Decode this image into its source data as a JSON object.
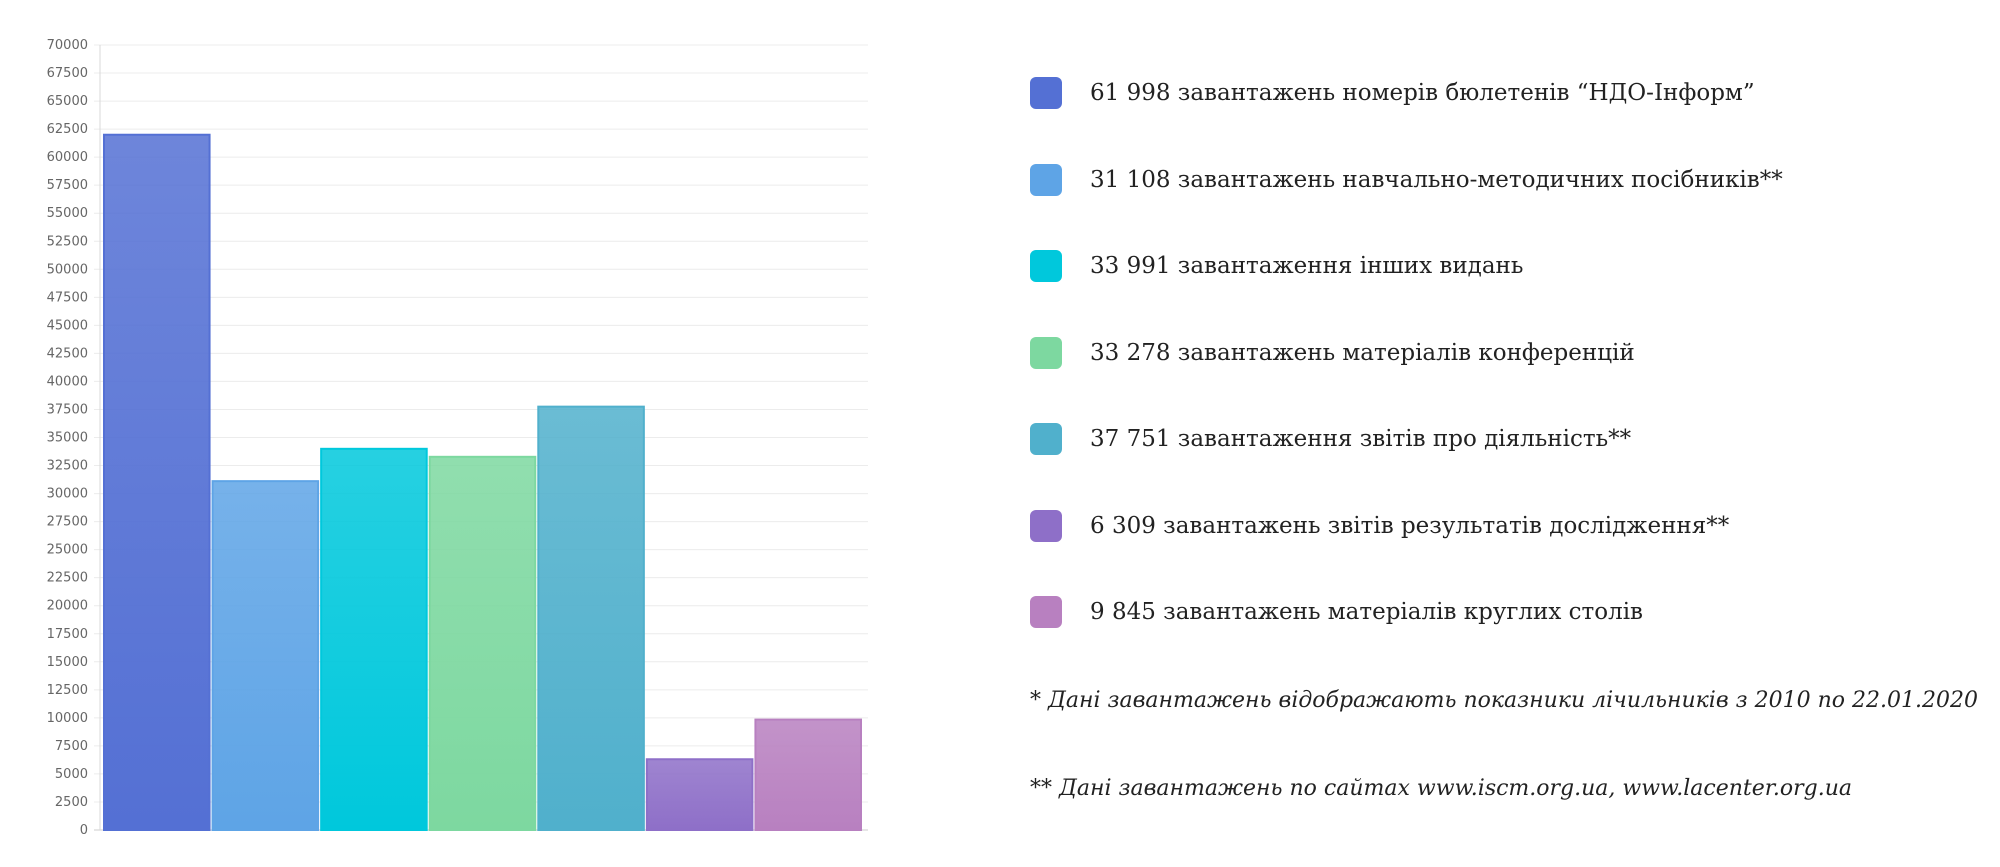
{
  "chart_data": {
    "type": "bar",
    "ylim": [
      0,
      70000
    ],
    "ytick_step": 2500,
    "grid": true,
    "legend_position": "right",
    "series": [
      {
        "name": "61 998 завантажень номерів бюлетенів “НДО-Інформ”",
        "value": 61998,
        "color": "#5470d4"
      },
      {
        "name": "31 108 завантажень навчально-методичних посібників**",
        "value": 31108,
        "color": "#5ea4e6"
      },
      {
        "name": "33 991 завантаження інших видань",
        "value": 33991,
        "color": "#00c8dc"
      },
      {
        "name": "33 278 завантажень матеріалів конференцій",
        "value": 33278,
        "color": "#7dd8a0"
      },
      {
        "name": "37 751 завантаження звітів про діяльність**",
        "value": 37751,
        "color": "#50b0cc"
      },
      {
        "name": "6 309 завантажень звітів результатів дослідження**",
        "value": 6309,
        "color": "#8e6fc8"
      },
      {
        "name": "9 845 завантажень матеріалів круглих столів",
        "value": 9845,
        "color": "#b880c0"
      }
    ]
  },
  "notes": [
    "* Дані завантажень відображають показники лічильників  з 2010 по 22.01.2020",
    "** Дані завантажень по сайтах www.iscm.org.ua, www.lacenter.org.ua"
  ]
}
